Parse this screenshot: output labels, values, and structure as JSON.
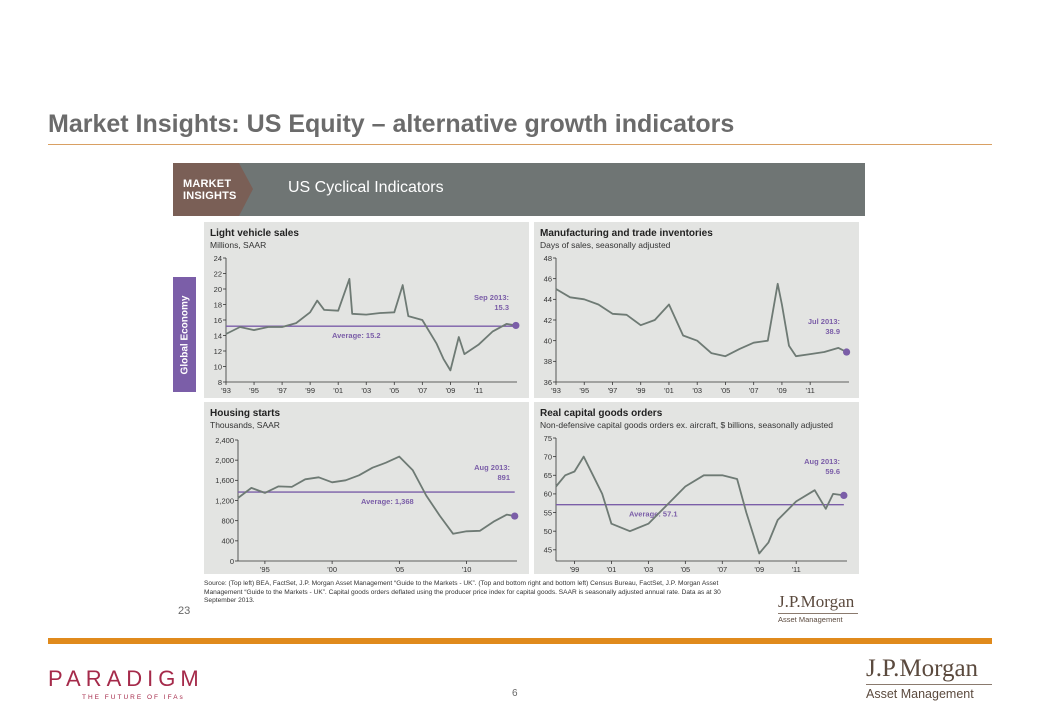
{
  "slide": {
    "title": "Market Insights: US Equity – alternative growth indicators",
    "page_number": "6",
    "paradigm_logo": "PARADIGM",
    "paradigm_tagline": "THE FUTURE OF IFAs",
    "jpm_logo_name": "J.P.Morgan",
    "jpm_logo_sub": "Asset Management"
  },
  "inner": {
    "badge_line1": "MARKET",
    "badge_line2": "INSIGHTS",
    "header_title": "US Cyclical Indicators",
    "side_tab": "Global Economy",
    "source_note": "Source: (Top left) BEA, FactSet, J.P. Morgan Asset Management “Guide to the Markets - UK”. (Top and bottom right and bottom left) Census Bureau, FactSet, J.P. Morgan Asset Management “Guide to the Markets - UK”. Capital goods orders deflated using the producer price index for capital goods. SAAR is seasonally adjusted annual rate. Data as at 30 September 2013.",
    "page_number": "23",
    "jpm_name": "J.P.Morgan",
    "jpm_sub": "Asset Management"
  },
  "colors": {
    "series": "#6e7a74",
    "accent": "#7b5ea8",
    "panel_bg": "#e3e4e2",
    "header_bg": "#6f7574",
    "orange": "#e08a1c"
  },
  "chart_data": [
    {
      "type": "line",
      "title": "Light vehicle sales",
      "subtitle": "Millions, SAAR",
      "xlim": [
        1993,
        2013.75
      ],
      "ylim": [
        8,
        24
      ],
      "yticks": [
        8,
        10,
        12,
        14,
        16,
        18,
        20,
        22,
        24
      ],
      "yticklabels": [
        "8",
        "10",
        "12",
        "14",
        "16",
        "18",
        "20",
        "22",
        "24"
      ],
      "xticks": [
        1993,
        1995,
        1997,
        1999,
        2001,
        2003,
        2005,
        2007,
        2009,
        2011
      ],
      "xticklabels": [
        "'93",
        "'95",
        "'97",
        "'99",
        "'01",
        "'03",
        "'05",
        "'07",
        "'09",
        "'11"
      ],
      "average": 15.2,
      "average_label": "Average: 15.2",
      "last_point": {
        "x": 2013.67,
        "y": 15.3
      },
      "last_label": [
        "Sep 2013:",
        "15.3"
      ],
      "series": [
        {
          "x": [
            1993,
            1994,
            1995,
            1996,
            1997,
            1998,
            1999,
            1999.5,
            2000,
            2001,
            2001.8,
            2002,
            2003,
            2004,
            2005,
            2005.6,
            2006,
            2007,
            2008,
            2008.5,
            2009,
            2009.6,
            2010,
            2011,
            2012,
            2013,
            2013.67
          ],
          "y": [
            14.2,
            15.1,
            14.7,
            15.1,
            15.1,
            15.6,
            17.0,
            18.5,
            17.3,
            17.2,
            21.3,
            16.8,
            16.7,
            16.9,
            17.0,
            20.5,
            16.5,
            16.0,
            13.0,
            11.0,
            9.5,
            13.8,
            11.6,
            12.8,
            14.5,
            15.5,
            15.3
          ]
        }
      ]
    },
    {
      "type": "line",
      "title": "Manufacturing and trade inventories",
      "subtitle": "Days of sales, seasonally adjusted",
      "xlim": [
        1993,
        2013.75
      ],
      "ylim": [
        36,
        48
      ],
      "yticks": [
        36,
        38,
        40,
        42,
        44,
        46,
        48
      ],
      "yticklabels": [
        "36",
        "38",
        "40",
        "42",
        "44",
        "46",
        "48"
      ],
      "xticks": [
        1993,
        1995,
        1997,
        1999,
        2001,
        2003,
        2005,
        2007,
        2009,
        2011
      ],
      "xticklabels": [
        "'93",
        "'95",
        "'97",
        "'99",
        "'01",
        "'03",
        "'05",
        "'07",
        "'09",
        "'11"
      ],
      "last_point": {
        "x": 2013.58,
        "y": 38.9
      },
      "last_label": [
        "Jul 2013:",
        "38.9"
      ],
      "series": [
        {
          "x": [
            1993,
            1994,
            1995,
            1996,
            1997,
            1998,
            1999,
            2000,
            2001,
            2002,
            2003,
            2004,
            2005,
            2006,
            2007,
            2008,
            2008.7,
            2009,
            2009.5,
            2010,
            2011,
            2012,
            2013,
            2013.58
          ],
          "y": [
            45.0,
            44.2,
            44.0,
            43.5,
            42.6,
            42.5,
            41.5,
            42.0,
            43.5,
            40.5,
            40.0,
            38.8,
            38.5,
            39.2,
            39.8,
            40.0,
            45.5,
            43.5,
            39.5,
            38.5,
            38.7,
            38.9,
            39.3,
            38.9
          ]
        }
      ]
    },
    {
      "type": "line",
      "title": "Housing starts",
      "subtitle": "Thousands, SAAR",
      "xlim": [
        1993,
        2013.75
      ],
      "ylim": [
        0,
        2400
      ],
      "yticks": [
        0,
        400,
        800,
        1200,
        1600,
        2000,
        2400
      ],
      "yticklabels": [
        "0",
        "400",
        "800",
        "1,200",
        "1,600",
        "2,000",
        "2,400"
      ],
      "xticks": [
        1995,
        2000,
        2005,
        2010
      ],
      "xticklabels": [
        "'95",
        "'00",
        "'05",
        "'10"
      ],
      "average": 1368,
      "average_label": "Average: 1,368",
      "last_point": {
        "x": 2013.58,
        "y": 891
      },
      "last_label": [
        "Aug 2013:",
        "891"
      ],
      "series": [
        {
          "x": [
            1993,
            1994,
            1995,
            1996,
            1997,
            1998,
            1999,
            2000,
            2001,
            2002,
            2003,
            2004,
            2005,
            2006,
            2007,
            2008,
            2009,
            2010,
            2011,
            2012,
            2013,
            2013.58
          ],
          "y": [
            1250,
            1450,
            1350,
            1480,
            1470,
            1620,
            1660,
            1560,
            1600,
            1700,
            1850,
            1950,
            2070,
            1800,
            1300,
            900,
            540,
            590,
            600,
            780,
            920,
            891
          ]
        }
      ]
    },
    {
      "type": "line",
      "title": "Real capital goods orders",
      "subtitle": "Non-defensive capital goods orders ex. aircraft, $ billions, seasonally adjusted",
      "xlim": [
        1998,
        2013.75
      ],
      "ylim": [
        42,
        75
      ],
      "yticks": [
        45,
        50,
        55,
        60,
        65,
        70,
        75
      ],
      "yticklabels": [
        "45",
        "50",
        "55",
        "60",
        "65",
        "70",
        "75"
      ],
      "xticks": [
        1999,
        2001,
        2003,
        2005,
        2007,
        2009,
        2011
      ],
      "xticklabels": [
        "'99",
        "'01",
        "'03",
        "'05",
        "'07",
        "'09",
        "'11"
      ],
      "average": 57.1,
      "average_label": "Average: 57.1",
      "last_point": {
        "x": 2013.58,
        "y": 59.6
      },
      "last_label": [
        "Aug 2013:",
        "59.6"
      ],
      "series": [
        {
          "x": [
            1998,
            1998.5,
            1999,
            1999.5,
            2000,
            2000.5,
            2001,
            2002,
            2003,
            2004,
            2005,
            2006,
            2007,
            2007.8,
            2008.3,
            2009,
            2009.5,
            2010,
            2011,
            2012,
            2012.6,
            2013,
            2013.58
          ],
          "y": [
            62,
            65,
            66,
            70,
            65,
            60,
            52,
            50,
            52,
            57,
            62,
            65,
            65,
            64,
            55,
            44,
            47,
            53,
            58,
            61,
            56,
            60,
            59.6
          ]
        }
      ]
    }
  ]
}
